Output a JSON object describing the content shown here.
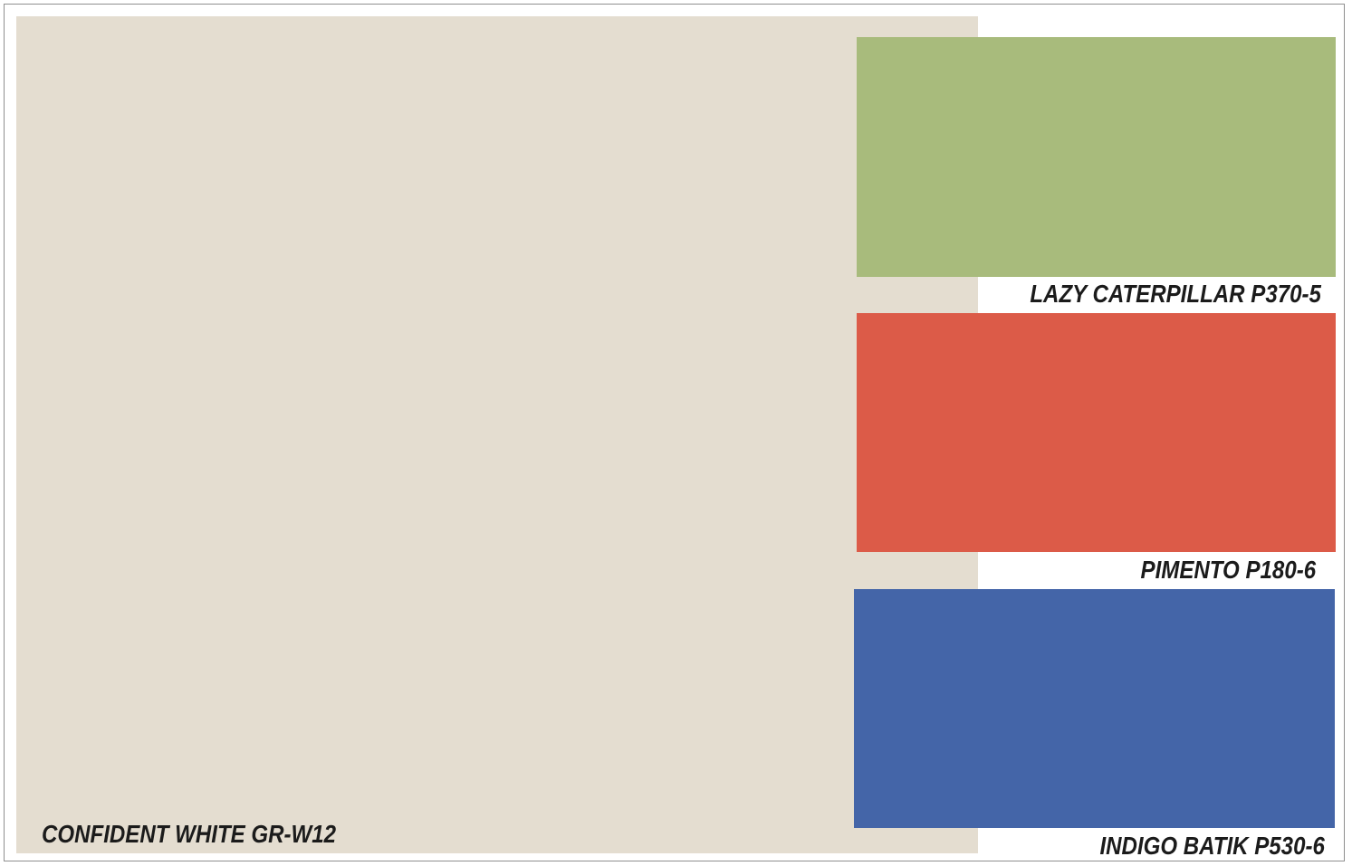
{
  "palette": {
    "main": {
      "name": "CONFIDENT WHITE GR-W12",
      "color": "#e4ddd0"
    },
    "swatches": [
      {
        "name": "LAZY CATERPILLAR P370-5",
        "color": "#a8bb7c"
      },
      {
        "name": "PIMENTO P180-6",
        "color": "#dc5b48"
      },
      {
        "name": "INDIGO BATIK P530-6",
        "color": "#4465a8"
      }
    ]
  }
}
